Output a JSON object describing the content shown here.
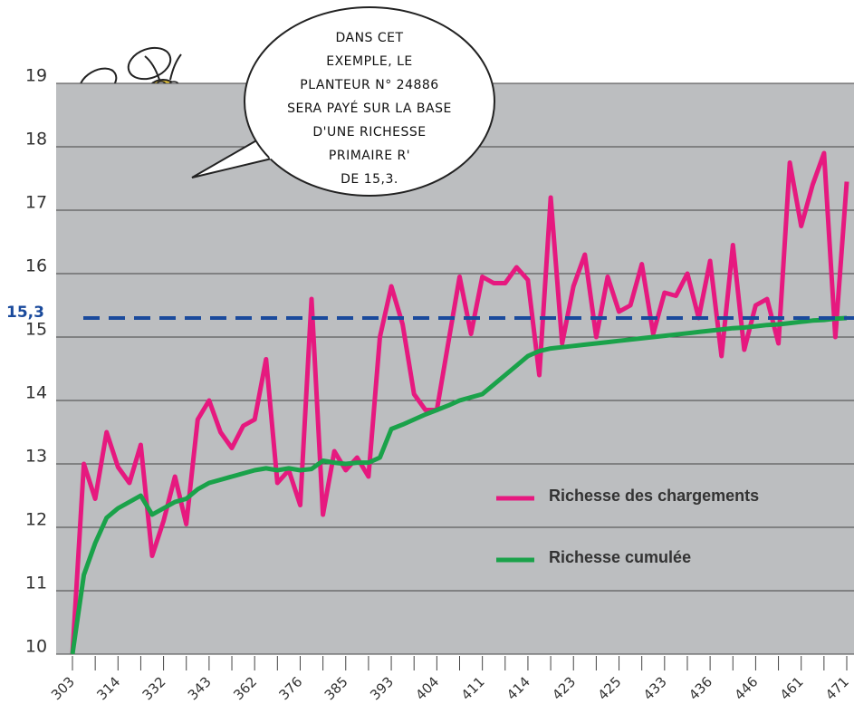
{
  "chart_data": {
    "type": "line",
    "categories": [
      "303",
      null,
      null,
      null,
      "314",
      null,
      null,
      null,
      "332",
      null,
      null,
      null,
      "343",
      null,
      null,
      null,
      "362",
      null,
      null,
      null,
      "376",
      null,
      null,
      null,
      "385",
      null,
      null,
      null,
      "393",
      null,
      null,
      null,
      "404",
      null,
      null,
      null,
      "411",
      null,
      null,
      null,
      "414",
      null,
      null,
      null,
      "423",
      null,
      null,
      null,
      "425",
      null,
      null,
      null,
      "433",
      null,
      null,
      null,
      "436",
      null,
      null,
      null,
      "446",
      null,
      null,
      null,
      "461",
      null,
      null,
      null,
      "471"
    ],
    "series": [
      {
        "name": "Richesse des chargements",
        "color": "#e6197f",
        "values": [
          10.0,
          13.0,
          12.45,
          13.5,
          12.95,
          12.7,
          13.3,
          11.55,
          12.1,
          12.8,
          12.05,
          13.7,
          14.0,
          13.5,
          13.25,
          13.6,
          13.7,
          14.65,
          12.7,
          12.9,
          12.35,
          15.6,
          12.2,
          13.2,
          12.9,
          13.1,
          12.8,
          15.0,
          15.8,
          15.2,
          14.1,
          13.85,
          13.85,
          14.9,
          15.95,
          15.05,
          15.95,
          15.85,
          15.85,
          16.1,
          15.9,
          14.4,
          17.2,
          14.9,
          15.8,
          16.3,
          15.0,
          15.95,
          15.4,
          15.5,
          16.15,
          15.05,
          15.7,
          15.65,
          16.0,
          15.3,
          16.2,
          14.7,
          16.45,
          14.8,
          15.5,
          15.6,
          14.9,
          17.75,
          16.75,
          17.4,
          17.9,
          15.0,
          17.45
        ]
      },
      {
        "name": "Richesse cumulée",
        "color": "#1aa24a",
        "values": [
          10.0,
          11.25,
          11.75,
          12.15,
          12.3,
          12.4,
          12.5,
          12.2,
          12.3,
          12.4,
          12.45,
          12.6,
          12.7,
          12.75,
          12.8,
          12.85,
          12.9,
          12.93,
          12.9,
          12.93,
          12.9,
          12.92,
          13.05,
          13.02,
          13.0,
          13.02,
          13.02,
          13.1,
          13.55,
          13.62,
          13.7,
          13.78,
          13.85,
          13.92,
          14.0,
          14.05,
          14.1,
          14.25,
          14.4,
          14.55,
          14.7,
          14.78,
          14.82,
          14.84,
          14.86,
          14.88,
          14.9,
          14.92,
          14.94,
          14.96,
          14.98,
          15.0,
          15.02,
          15.04,
          15.06,
          15.08,
          15.1,
          15.12,
          15.14,
          15.15,
          15.17,
          15.19,
          15.2,
          15.22,
          15.24,
          15.26,
          15.27,
          15.29,
          15.3
        ]
      }
    ],
    "ylim": [
      10,
      19
    ],
    "yticks": [
      10,
      11,
      12,
      13,
      14,
      15,
      16,
      17,
      18,
      19
    ],
    "grid": true,
    "legend": "center right",
    "background": "#bcbec0",
    "reference_line": {
      "value": 15.3,
      "label": "15,3",
      "color": "#1a4a9c"
    },
    "annotation": [
      "DANS CET",
      "EXEMPLE, LE",
      "PLANTEUR N° 24886",
      "SERA PAYÉ SUR LA BASE",
      "D'UNE RICHESSE",
      "PRIMAIRE R'",
      "DE 15,3."
    ]
  }
}
